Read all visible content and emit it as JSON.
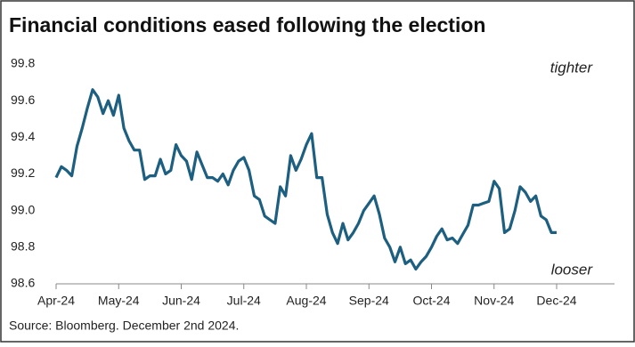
{
  "chart_data": {
    "type": "line",
    "title": "Financial conditions eased following the election",
    "source": "Source: Bloomberg. December 2nd 2024.",
    "annotations": [
      "tighter",
      "looser"
    ],
    "categories": [
      "Apr-24",
      null,
      null,
      null,
      null,
      null,
      null,
      null,
      null,
      null,
      null,
      null,
      "May-24",
      null,
      null,
      null,
      null,
      null,
      null,
      null,
      null,
      null,
      null,
      null,
      "Jun-24",
      null,
      null,
      null,
      null,
      null,
      null,
      null,
      null,
      null,
      null,
      null,
      "Jul-24",
      null,
      null,
      null,
      null,
      null,
      null,
      null,
      null,
      null,
      null,
      null,
      "Aug-24",
      null,
      null,
      null,
      null,
      null,
      null,
      null,
      null,
      null,
      null,
      null,
      "Sep-24",
      null,
      null,
      null,
      null,
      null,
      null,
      null,
      null,
      null,
      null,
      null,
      "Oct-24",
      null,
      null,
      null,
      null,
      null,
      null,
      null,
      null,
      null,
      null,
      null,
      "Nov-24",
      null,
      null,
      null,
      null,
      null,
      null,
      null,
      null,
      null,
      null,
      null,
      "Dec-24"
    ],
    "values": [
      99.18,
      99.24,
      99.22,
      99.19,
      99.35,
      99.45,
      99.56,
      99.66,
      99.62,
      99.53,
      99.6,
      99.52,
      99.63,
      99.45,
      99.38,
      99.33,
      99.33,
      99.17,
      99.19,
      99.19,
      99.28,
      99.2,
      99.22,
      99.36,
      99.3,
      99.27,
      99.17,
      99.32,
      99.25,
      99.18,
      99.18,
      99.16,
      99.2,
      99.14,
      99.22,
      99.27,
      99.29,
      99.22,
      99.08,
      99.06,
      98.97,
      98.95,
      98.93,
      99.13,
      99.08,
      99.3,
      99.22,
      99.28,
      99.36,
      99.42,
      99.18,
      99.18,
      98.98,
      98.88,
      98.82,
      98.93,
      98.84,
      98.88,
      98.93,
      99.0,
      99.04,
      99.08,
      98.98,
      98.85,
      98.8,
      98.72,
      98.8,
      98.71,
      98.73,
      98.68,
      98.72,
      98.75,
      98.8,
      98.86,
      98.9,
      98.84,
      98.85,
      98.82,
      98.87,
      98.92,
      99.03,
      99.03,
      99.04,
      99.05,
      99.16,
      99.12,
      98.88,
      98.9,
      99.0,
      99.13,
      99.1,
      99.05,
      99.08,
      98.97,
      98.95,
      98.88,
      98.88
    ],
    "color": "#1d5f80",
    "ylim": [
      98.6,
      99.8
    ],
    "yticks": [
      98.6,
      98.8,
      {
        "value": 99,
        "label": "99.0"
      },
      99.2,
      99.4,
      99.6,
      99.8
    ],
    "grid": false
  }
}
